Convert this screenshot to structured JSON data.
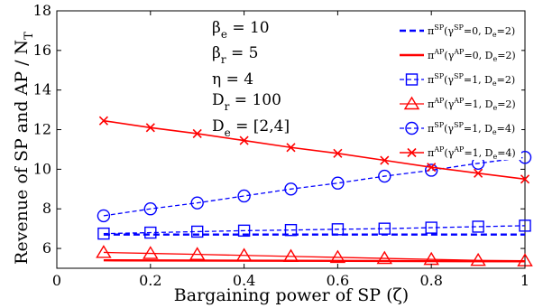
{
  "chart_data": {
    "type": "line",
    "xlabel": "Bargaining power of SP (ζ)",
    "ylabel": "Revenue of SP and AP / N",
    "ylabel_sub": "T",
    "xlim": [
      0,
      1
    ],
    "ylim": [
      5,
      18
    ],
    "xticks": [
      0,
      0.2,
      0.4,
      0.6,
      0.8,
      1
    ],
    "xtick_labels": [
      "0",
      "0.2",
      "0.4",
      "0.6",
      "0.8",
      "1"
    ],
    "yticks": [
      6,
      8,
      10,
      12,
      14,
      16,
      18
    ],
    "ytick_labels": [
      "6",
      "8",
      "10",
      "12",
      "14",
      "16",
      "18"
    ],
    "grid": false,
    "legend_position": "top-right",
    "annotations": [
      {
        "main": "β",
        "sub": "e",
        "rest": " = 10"
      },
      {
        "main": "β",
        "sub": "r",
        "rest": " = 5"
      },
      {
        "main": "η",
        "sub": "",
        "rest": " = 4"
      },
      {
        "main": "D",
        "sub": "r",
        "rest": " = 100"
      },
      {
        "main": "D",
        "sub": "e",
        "rest": " = [2,4]"
      }
    ],
    "series": [
      {
        "legend": {
          "sym": "π",
          "sup": "SP",
          "a": "(γ",
          "asup": "SP",
          "b": "=0, D",
          "bsub": "e",
          "c": "=2)"
        },
        "color": "#0000ff",
        "dash": "7,4",
        "width": 2.4,
        "marker": "none",
        "x": [
          0.1,
          1.0
        ],
        "y": [
          6.7,
          6.7
        ]
      },
      {
        "legend": {
          "sym": "π",
          "sup": "AP",
          "a": "(γ",
          "asup": "AP",
          "b": "=0, D",
          "bsub": "e",
          "c": "=2)"
        },
        "color": "#ff0000",
        "dash": "",
        "width": 2.4,
        "marker": "none",
        "x": [
          0.1,
          1.0
        ],
        "y": [
          5.4,
          5.35
        ]
      },
      {
        "legend": {
          "sym": "π",
          "sup": "SP",
          "a": "(γ",
          "asup": "SP",
          "b": "=1, D",
          "bsub": "e",
          "c": "=2)"
        },
        "color": "#0000ff",
        "dash": "5,3",
        "width": 1.3,
        "marker": "square",
        "x": [
          0.1,
          0.2,
          0.3,
          0.4,
          0.5,
          0.6,
          0.7,
          0.8,
          0.9,
          1.0
        ],
        "y": [
          6.75,
          6.8,
          6.85,
          6.9,
          6.93,
          6.97,
          7.0,
          7.05,
          7.1,
          7.15
        ]
      },
      {
        "legend": {
          "sym": "π",
          "sup": "AP",
          "a": "(γ",
          "asup": "AP",
          "b": "=1, D",
          "bsub": "e",
          "c": "=2)"
        },
        "color": "#ff0000",
        "dash": "",
        "width": 1.3,
        "marker": "triangle",
        "x": [
          0.1,
          0.2,
          0.3,
          0.4,
          0.5,
          0.6,
          0.7,
          0.8,
          0.9,
          1.0
        ],
        "y": [
          5.8,
          5.75,
          5.7,
          5.65,
          5.6,
          5.55,
          5.5,
          5.45,
          5.4,
          5.38
        ]
      },
      {
        "legend": {
          "sym": "π",
          "sup": "SP",
          "a": "(γ",
          "asup": "SP",
          "b": "=1, D",
          "bsub": "e",
          "c": "=4)"
        },
        "color": "#0000ff",
        "dash": "5,3",
        "width": 1.3,
        "marker": "circle",
        "x": [
          0.1,
          0.2,
          0.3,
          0.4,
          0.5,
          0.6,
          0.7,
          0.8,
          0.9,
          1.0
        ],
        "y": [
          7.65,
          8.0,
          8.3,
          8.65,
          9.0,
          9.3,
          9.65,
          9.95,
          10.3,
          10.6
        ]
      },
      {
        "legend": {
          "sym": "π",
          "sup": "AP",
          "a": "(γ",
          "asup": "AP",
          "b": "=1, D",
          "bsub": "e",
          "c": "=4)"
        },
        "color": "#ff0000",
        "dash": "",
        "width": 1.6,
        "marker": "x",
        "x": [
          0.1,
          0.2,
          0.3,
          0.4,
          0.5,
          0.6,
          0.7,
          0.8,
          0.9,
          1.0
        ],
        "y": [
          12.45,
          12.1,
          11.8,
          11.45,
          11.1,
          10.8,
          10.45,
          10.1,
          9.8,
          9.5
        ]
      }
    ]
  }
}
